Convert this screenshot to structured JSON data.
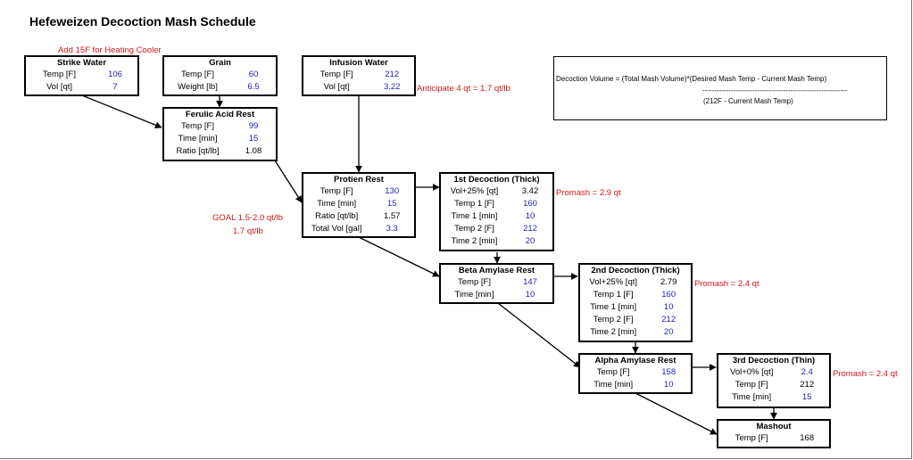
{
  "title": "Hefeweizen Decoction Mash Schedule",
  "boxes": [
    {
      "id": "strike-water",
      "title": "Strike Water",
      "rows": [
        {
          "label": "Temp [F]",
          "value": "106",
          "blue": true
        },
        {
          "label": "Vol [qt]",
          "value": "7",
          "blue": true
        }
      ]
    },
    {
      "id": "grain",
      "title": "Grain",
      "rows": [
        {
          "label": "Temp [F]",
          "value": "60",
          "blue": true
        },
        {
          "label": "Weight [lb]",
          "value": "6.5",
          "blue": true
        }
      ]
    },
    {
      "id": "infusion-water",
      "title": "Infusion Water",
      "rows": [
        {
          "label": "Temp [F]",
          "value": "212",
          "blue": true
        },
        {
          "label": "Vol [qt]",
          "value": "3.22",
          "blue": true
        }
      ]
    },
    {
      "id": "ferulic-acid-rest",
      "title": "Ferulic Acid Rest",
      "rows": [
        {
          "label": "Temp [F]",
          "value": "99",
          "blue": true
        },
        {
          "label": "Time [min]",
          "value": "15",
          "blue": true
        },
        {
          "label": "Ratio [qt/lb]",
          "value": "1.08",
          "blue": false
        }
      ]
    },
    {
      "id": "protien-rest",
      "title": "Protien Rest",
      "rows": [
        {
          "label": "Temp [F]",
          "value": "130",
          "blue": true
        },
        {
          "label": "Time [min]",
          "value": "15",
          "blue": true
        },
        {
          "label": "Ratio [qt/lb]",
          "value": "1.57",
          "blue": false
        },
        {
          "label": "Total Vol [gal]",
          "value": "3.3",
          "blue": true
        }
      ]
    },
    {
      "id": "first-decoction",
      "title": "1st Decoction (Thick)",
      "rows": [
        {
          "label": "Vol+25% [qt]",
          "value": "3.42",
          "blue": false
        },
        {
          "label": "Temp 1 [F]",
          "value": "160",
          "blue": true
        },
        {
          "label": "Time 1 [min]",
          "value": "10",
          "blue": true
        },
        {
          "label": "Temp 2 [F]",
          "value": "212",
          "blue": true
        },
        {
          "label": "Time 2 [min]",
          "value": "20",
          "blue": true
        }
      ]
    },
    {
      "id": "beta-amylase-rest",
      "title": "Beta Amylase Rest",
      "rows": [
        {
          "label": "Temp [F]",
          "value": "147",
          "blue": true
        },
        {
          "label": "Time [min]",
          "value": "10",
          "blue": true
        }
      ]
    },
    {
      "id": "second-decoction",
      "title": "2nd Decoction (Thick)",
      "rows": [
        {
          "label": "Vol+25% [qt]",
          "value": "2.79",
          "blue": false
        },
        {
          "label": "Temp 1 [F]",
          "value": "160",
          "blue": true
        },
        {
          "label": "Time 1 [min]",
          "value": "10",
          "blue": true
        },
        {
          "label": "Temp 2 [F]",
          "value": "212",
          "blue": true
        },
        {
          "label": "Time 2 [min]",
          "value": "20",
          "blue": true
        }
      ]
    },
    {
      "id": "alpha-amylase-rest",
      "title": "Alpha Amylase Rest",
      "rows": [
        {
          "label": "Temp [F]",
          "value": "158",
          "blue": true
        },
        {
          "label": "Time [min]",
          "value": "10",
          "blue": true
        }
      ]
    },
    {
      "id": "third-decoction",
      "title": "3rd Decoction (Thin)",
      "rows": [
        {
          "label": "Vol+0% [qt]",
          "value": "2.4",
          "blue": true
        },
        {
          "label": "Temp [F]",
          "value": "212",
          "blue": false
        },
        {
          "label": "Time [min]",
          "value": "15",
          "blue": true
        }
      ]
    },
    {
      "id": "mashout",
      "title": "Mashout",
      "rows": [
        {
          "label": "Temp [F]",
          "value": "168",
          "blue": false
        }
      ]
    }
  ],
  "notes": {
    "heating_cooler": "Add 15F for Heating Cooler",
    "anticipate": "Anticipate 4 qt = 1.7 qt/lb",
    "goal": "GOAL 1.5-2.0 qt/lb",
    "goal_value": "1.7 qt/lb",
    "promash_1": "Promash = 2.9 qt",
    "promash_2": "Promash = 2.4 qt",
    "promash_3": "Promash = 2.4 qt"
  },
  "formula": {
    "numerator": "Decoction Volume = (Total Mash Volume)*(Desired Mash Temp - Current Mash Temp)",
    "divider": "-------------------------------------------------------------",
    "denominator": "(212F - Current Mash Temp)"
  },
  "colors": {
    "value_blue": "#1f1fb8",
    "note_red": "#d01818"
  }
}
